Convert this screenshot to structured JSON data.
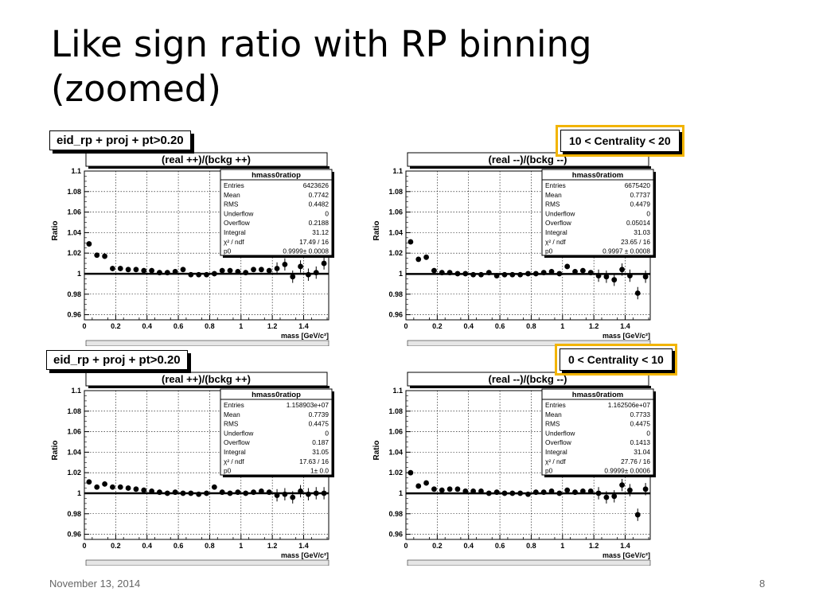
{
  "slide": {
    "title": "Like sign ratio with RP binning (zoomed)",
    "date": "November 13, 2014",
    "page": "8"
  },
  "row_labels": [
    "eid_rp + proj + pt>0.20",
    "eid_rp + proj + pt>0.20"
  ],
  "centrality": [
    "10 < Centrality < 20",
    "0 < Centrality < 10"
  ],
  "chart_data": [
    {
      "type": "scatter",
      "title": "(real ++)/(bckg ++)",
      "xlabel": "mass [GeV/c²]",
      "ylabel": "Ratio",
      "xlim": [
        0,
        1.56
      ],
      "ylim": [
        0.955,
        1.1
      ],
      "xticks": [
        "0",
        "0.2",
        "0.4",
        "0.6",
        "0.8",
        "1",
        "1.2",
        "1.4"
      ],
      "yticks": [
        "0.96",
        "0.98",
        "1",
        "1.02",
        "1.04",
        "1.06",
        "1.08",
        "1.1"
      ],
      "grid": true,
      "fit": 0.9999,
      "stats": {
        "name": "hmass0ratiop",
        "rows": [
          [
            "Entries",
            "6423626"
          ],
          [
            "Mean",
            "0.7742"
          ],
          [
            "RMS",
            "0.4482"
          ],
          [
            "Underflow",
            "0"
          ],
          [
            "Overflow",
            "0.2188"
          ],
          [
            "Integral",
            "31.12"
          ],
          [
            "χ² / ndf",
            "17.49 / 16"
          ],
          [
            "p0",
            "0.9999± 0.0008"
          ]
        ]
      },
      "points": [
        [
          0.03,
          1.029
        ],
        [
          0.08,
          1.018
        ],
        [
          0.13,
          1.017
        ],
        [
          0.18,
          1.005
        ],
        [
          0.23,
          1.005
        ],
        [
          0.28,
          1.004
        ],
        [
          0.33,
          1.004
        ],
        [
          0.38,
          1.003
        ],
        [
          0.43,
          1.003
        ],
        [
          0.48,
          1.001
        ],
        [
          0.53,
          1.001
        ],
        [
          0.58,
          1.002
        ],
        [
          0.63,
          1.004
        ],
        [
          0.68,
          0.999
        ],
        [
          0.73,
          0.999
        ],
        [
          0.78,
          0.999
        ],
        [
          0.83,
          1.0
        ],
        [
          0.88,
          1.003
        ],
        [
          0.93,
          1.003
        ],
        [
          0.98,
          1.002
        ],
        [
          1.03,
          1.001
        ],
        [
          1.08,
          1.004
        ],
        [
          1.13,
          1.004
        ],
        [
          1.18,
          1.003
        ],
        [
          1.23,
          1.005
        ],
        [
          1.28,
          1.009
        ],
        [
          1.33,
          0.997
        ],
        [
          1.38,
          1.007
        ],
        [
          1.43,
          0.999
        ],
        [
          1.48,
          1.001
        ],
        [
          1.53,
          1.01
        ]
      ]
    },
    {
      "type": "scatter",
      "title": "(real --)/(bckg --)",
      "xlabel": "mass [GeV/c²]",
      "ylabel": "Ratio",
      "xlim": [
        0,
        1.56
      ],
      "ylim": [
        0.955,
        1.1
      ],
      "xticks": [
        "0",
        "0.2",
        "0.4",
        "0.6",
        "0.8",
        "1",
        "1.2",
        "1.4"
      ],
      "yticks": [
        "0.96",
        "0.98",
        "1",
        "1.02",
        "1.04",
        "1.06",
        "1.08",
        "1.1"
      ],
      "grid": true,
      "fit": 0.9997,
      "stats": {
        "name": "hmass0ratiom",
        "rows": [
          [
            "Entries",
            "6675420"
          ],
          [
            "Mean",
            "0.7737"
          ],
          [
            "RMS",
            "0.4479"
          ],
          [
            "Underflow",
            "0"
          ],
          [
            "Overflow",
            "0.05014"
          ],
          [
            "Integral",
            "31.03"
          ],
          [
            "χ² / ndf",
            "23.65 / 16"
          ],
          [
            "p0",
            "0.9997 ± 0.0008"
          ]
        ]
      },
      "points": [
        [
          0.03,
          1.031
        ],
        [
          0.08,
          1.014
        ],
        [
          0.13,
          1.016
        ],
        [
          0.18,
          1.003
        ],
        [
          0.23,
          1.001
        ],
        [
          0.28,
          1.001
        ],
        [
          0.33,
          1.0
        ],
        [
          0.38,
          1.0
        ],
        [
          0.43,
          0.999
        ],
        [
          0.48,
          0.999
        ],
        [
          0.53,
          1.001
        ],
        [
          0.58,
          0.998
        ],
        [
          0.63,
          0.999
        ],
        [
          0.68,
          0.999
        ],
        [
          0.73,
          0.999
        ],
        [
          0.78,
          1.0
        ],
        [
          0.83,
          1.0
        ],
        [
          0.88,
          1.001
        ],
        [
          0.93,
          1.002
        ],
        [
          0.98,
          1.0
        ],
        [
          1.03,
          1.007
        ],
        [
          1.08,
          1.002
        ],
        [
          1.13,
          1.003
        ],
        [
          1.18,
          1.001
        ],
        [
          1.23,
          0.998
        ],
        [
          1.28,
          0.997
        ],
        [
          1.33,
          0.994
        ],
        [
          1.38,
          1.004
        ],
        [
          1.43,
          0.998
        ],
        [
          1.48,
          0.981
        ],
        [
          1.53,
          0.997
        ]
      ]
    },
    {
      "type": "scatter",
      "title": "(real ++)/(bckg ++)",
      "xlabel": "mass [GeV/c²]",
      "ylabel": "Ratio",
      "xlim": [
        0,
        1.56
      ],
      "ylim": [
        0.955,
        1.1
      ],
      "xticks": [
        "0",
        "0.2",
        "0.4",
        "0.6",
        "0.8",
        "1",
        "1.2",
        "1.4"
      ],
      "yticks": [
        "0.96",
        "0.98",
        "1",
        "1.02",
        "1.04",
        "1.06",
        "1.08",
        "1.1"
      ],
      "grid": true,
      "fit": 1.0,
      "stats": {
        "name": "hmass0ratiop",
        "rows": [
          [
            "Entries",
            "1.158903e+07"
          ],
          [
            "Mean",
            "0.7739"
          ],
          [
            "RMS",
            "0.4475"
          ],
          [
            "Underflow",
            "0"
          ],
          [
            "Overflow",
            "0.187"
          ],
          [
            "Integral",
            "31.05"
          ],
          [
            "χ² / ndf",
            "17.63 / 16"
          ],
          [
            "p0",
            "1± 0.0"
          ]
        ]
      },
      "points": [
        [
          0.03,
          1.011
        ],
        [
          0.08,
          1.006
        ],
        [
          0.13,
          1.009
        ],
        [
          0.18,
          1.006
        ],
        [
          0.23,
          1.006
        ],
        [
          0.28,
          1.005
        ],
        [
          0.33,
          1.004
        ],
        [
          0.38,
          1.003
        ],
        [
          0.43,
          1.002
        ],
        [
          0.48,
          1.001
        ],
        [
          0.53,
          1.0
        ],
        [
          0.58,
          1.001
        ],
        [
          0.63,
          1.0
        ],
        [
          0.68,
          1.0
        ],
        [
          0.73,
          0.999
        ],
        [
          0.78,
          1.0
        ],
        [
          0.83,
          1.006
        ],
        [
          0.88,
          1.001
        ],
        [
          0.93,
          1.0
        ],
        [
          0.98,
          1.001
        ],
        [
          1.03,
          1.0
        ],
        [
          1.08,
          1.001
        ],
        [
          1.13,
          1.002
        ],
        [
          1.18,
          1.001
        ],
        [
          1.23,
          0.998
        ],
        [
          1.28,
          0.999
        ],
        [
          1.33,
          0.996
        ],
        [
          1.38,
          1.002
        ],
        [
          1.43,
          0.999
        ],
        [
          1.48,
          1.0
        ],
        [
          1.53,
          1.0
        ]
      ]
    },
    {
      "type": "scatter",
      "title": "(real --)/(bckg --)",
      "xlabel": "mass [GeV/c²]",
      "ylabel": "Ratio",
      "xlim": [
        0,
        1.56
      ],
      "ylim": [
        0.955,
        1.1
      ],
      "xticks": [
        "0",
        "0.2",
        "0.4",
        "0.6",
        "0.8",
        "1",
        "1.2",
        "1.4"
      ],
      "yticks": [
        "0.96",
        "0.98",
        "1",
        "1.02",
        "1.04",
        "1.06",
        "1.08",
        "1.1"
      ],
      "grid": true,
      "fit": 0.9999,
      "stats": {
        "name": "hmass0ratiom",
        "rows": [
          [
            "Entries",
            "1.162506e+07"
          ],
          [
            "Mean",
            "0.7733"
          ],
          [
            "RMS",
            "0.4475"
          ],
          [
            "Underflow",
            "0"
          ],
          [
            "Overflow",
            "0.1413"
          ],
          [
            "Integral",
            "31.04"
          ],
          [
            "χ² / ndf",
            "27.76 / 16"
          ],
          [
            "p0",
            "0.9999± 0.0006"
          ]
        ]
      },
      "points": [
        [
          0.03,
          1.02
        ],
        [
          0.08,
          1.007
        ],
        [
          0.13,
          1.01
        ],
        [
          0.18,
          1.004
        ],
        [
          0.23,
          1.003
        ],
        [
          0.28,
          1.004
        ],
        [
          0.33,
          1.004
        ],
        [
          0.38,
          1.002
        ],
        [
          0.43,
          1.002
        ],
        [
          0.48,
          1.002
        ],
        [
          0.53,
          1.0
        ],
        [
          0.58,
          1.001
        ],
        [
          0.63,
          1.0
        ],
        [
          0.68,
          1.0
        ],
        [
          0.73,
          1.0
        ],
        [
          0.78,
          0.999
        ],
        [
          0.83,
          1.001
        ],
        [
          0.88,
          1.001
        ],
        [
          0.93,
          1.002
        ],
        [
          0.98,
          1.0
        ],
        [
          1.03,
          1.003
        ],
        [
          1.08,
          1.001
        ],
        [
          1.13,
          1.002
        ],
        [
          1.18,
          1.002
        ],
        [
          1.23,
          1.0
        ],
        [
          1.28,
          0.996
        ],
        [
          1.33,
          0.997
        ],
        [
          1.38,
          1.008
        ],
        [
          1.43,
          1.003
        ],
        [
          1.48,
          0.979
        ],
        [
          1.53,
          1.004
        ]
      ]
    }
  ]
}
